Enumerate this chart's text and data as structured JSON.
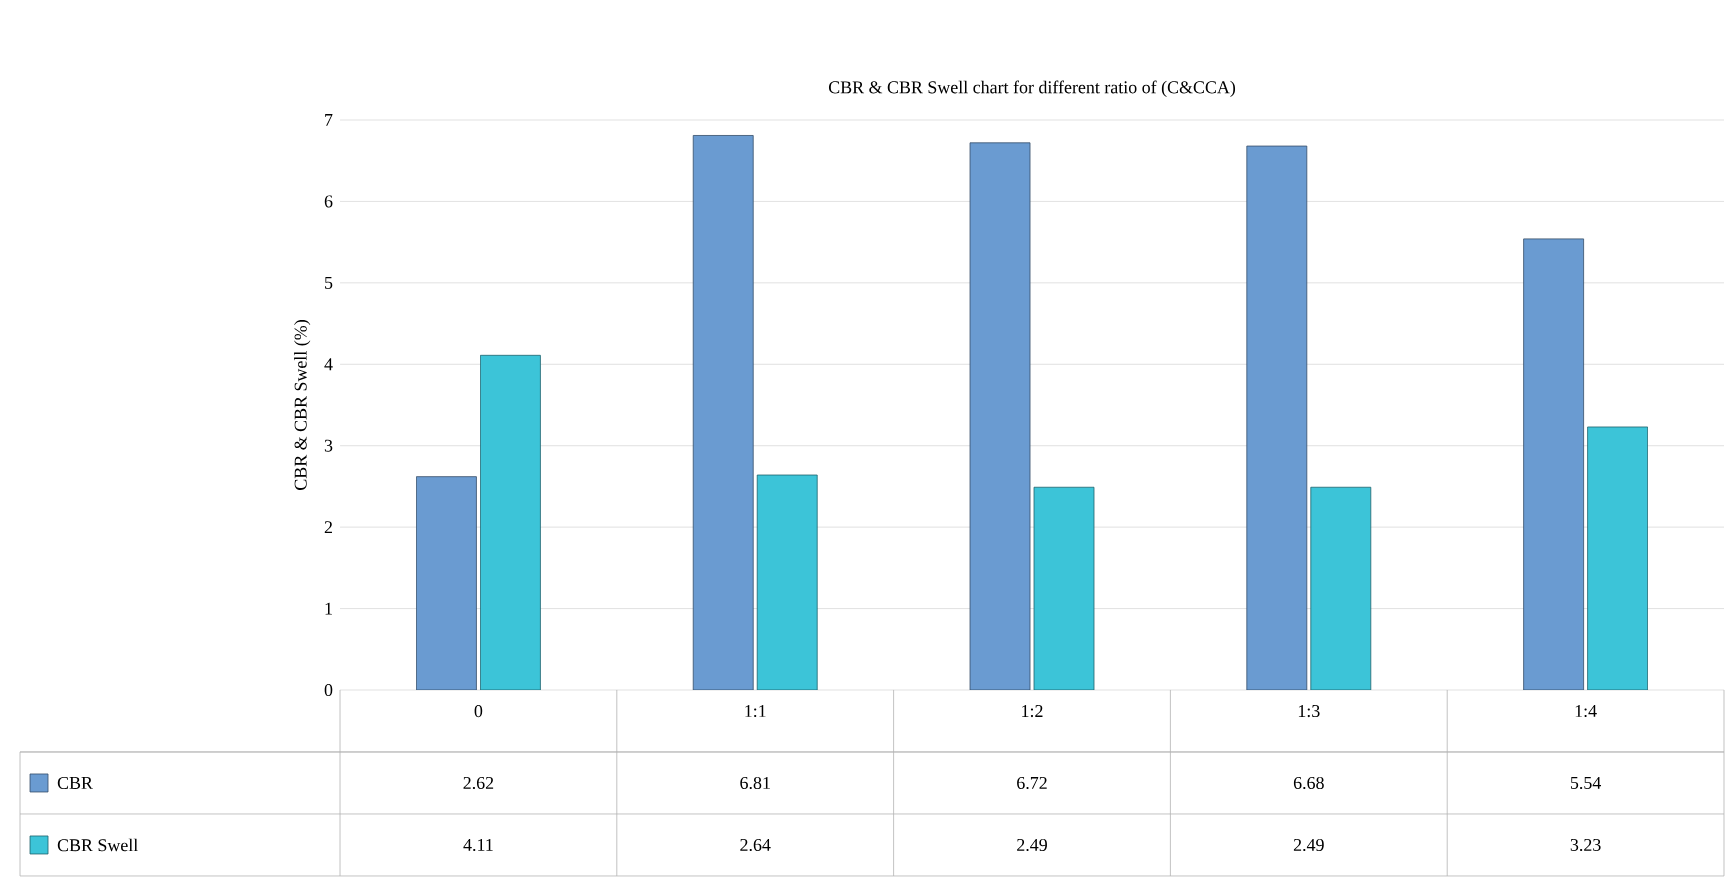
{
  "chart_data": {
    "type": "bar",
    "title": "CBR & CBR Swell chart for different ratio of (C&CCA)",
    "ylabel": "CBR & CBR Swell (%)",
    "categories": [
      "0",
      "1:1",
      "1:2",
      "1:3",
      "1:4"
    ],
    "series": [
      {
        "name": "CBR",
        "color": "#6a9bd1",
        "values": [
          2.62,
          6.81,
          6.72,
          6.68,
          5.54
        ]
      },
      {
        "name": "CBR Swell",
        "color": "#3cc4d8",
        "values": [
          4.11,
          2.64,
          2.49,
          2.49,
          3.23
        ]
      }
    ],
    "ylim": [
      0,
      7
    ],
    "yticks": [
      0,
      1,
      2,
      3,
      4,
      5,
      6,
      7
    ],
    "grid": "y",
    "data_labels": true,
    "legend": "bottom"
  }
}
